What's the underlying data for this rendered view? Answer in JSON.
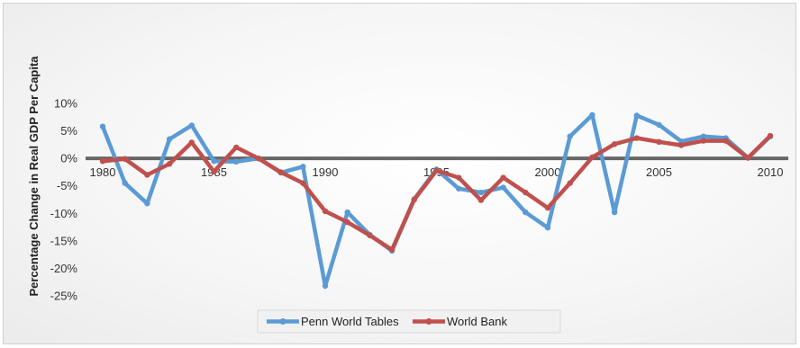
{
  "chart_data": {
    "type": "line",
    "title": "",
    "xlabel": "",
    "ylabel": "Percentage Change in Real GDP Per Capita",
    "x": [
      1980,
      1981,
      1982,
      1983,
      1984,
      1985,
      1986,
      1987,
      1988,
      1989,
      1990,
      1991,
      1992,
      1993,
      1994,
      1995,
      1996,
      1997,
      1998,
      1999,
      2000,
      2001,
      2002,
      2003,
      2004,
      2005,
      2006,
      2007,
      2008,
      2009,
      2010
    ],
    "x_tick_labels": [
      "1980",
      "1985",
      "1990",
      "1995",
      "2000",
      "2005",
      "2010"
    ],
    "y_tick_labels": [
      "10%",
      "5%",
      "0%",
      "-5%",
      "-10%",
      "-15%",
      "-20%",
      "-25%"
    ],
    "ylim": [
      -25,
      10
    ],
    "grid": false,
    "legend_position": "bottom",
    "series": [
      {
        "name": "Penn World Tables",
        "color": "#5b9bd5",
        "values": [
          5.8,
          -4.5,
          -8.2,
          3.5,
          6.0,
          -0.5,
          -0.6,
          0.0,
          -2.6,
          -1.5,
          -23.2,
          -9.8,
          -13.9,
          -16.8,
          -7.4,
          -2.0,
          -5.5,
          -6.2,
          -5.3,
          -9.8,
          -12.6,
          4.0,
          7.9,
          -9.8,
          7.8,
          6.1,
          3.1,
          4.0,
          3.7,
          0.1,
          4.0
        ]
      },
      {
        "name": "World Bank",
        "color": "#c0504d",
        "values": [
          -0.5,
          -0.1,
          -3.0,
          -1.0,
          2.9,
          -2.4,
          2.0,
          0.0,
          -2.5,
          -4.5,
          -9.6,
          -11.6,
          -14.0,
          -16.6,
          -7.5,
          -2.2,
          -3.5,
          -7.6,
          -3.5,
          -6.2,
          -9.0,
          -4.5,
          0.2,
          2.6,
          3.7,
          3.0,
          2.4,
          3.2,
          3.2,
          0.1,
          4.1
        ]
      }
    ]
  }
}
